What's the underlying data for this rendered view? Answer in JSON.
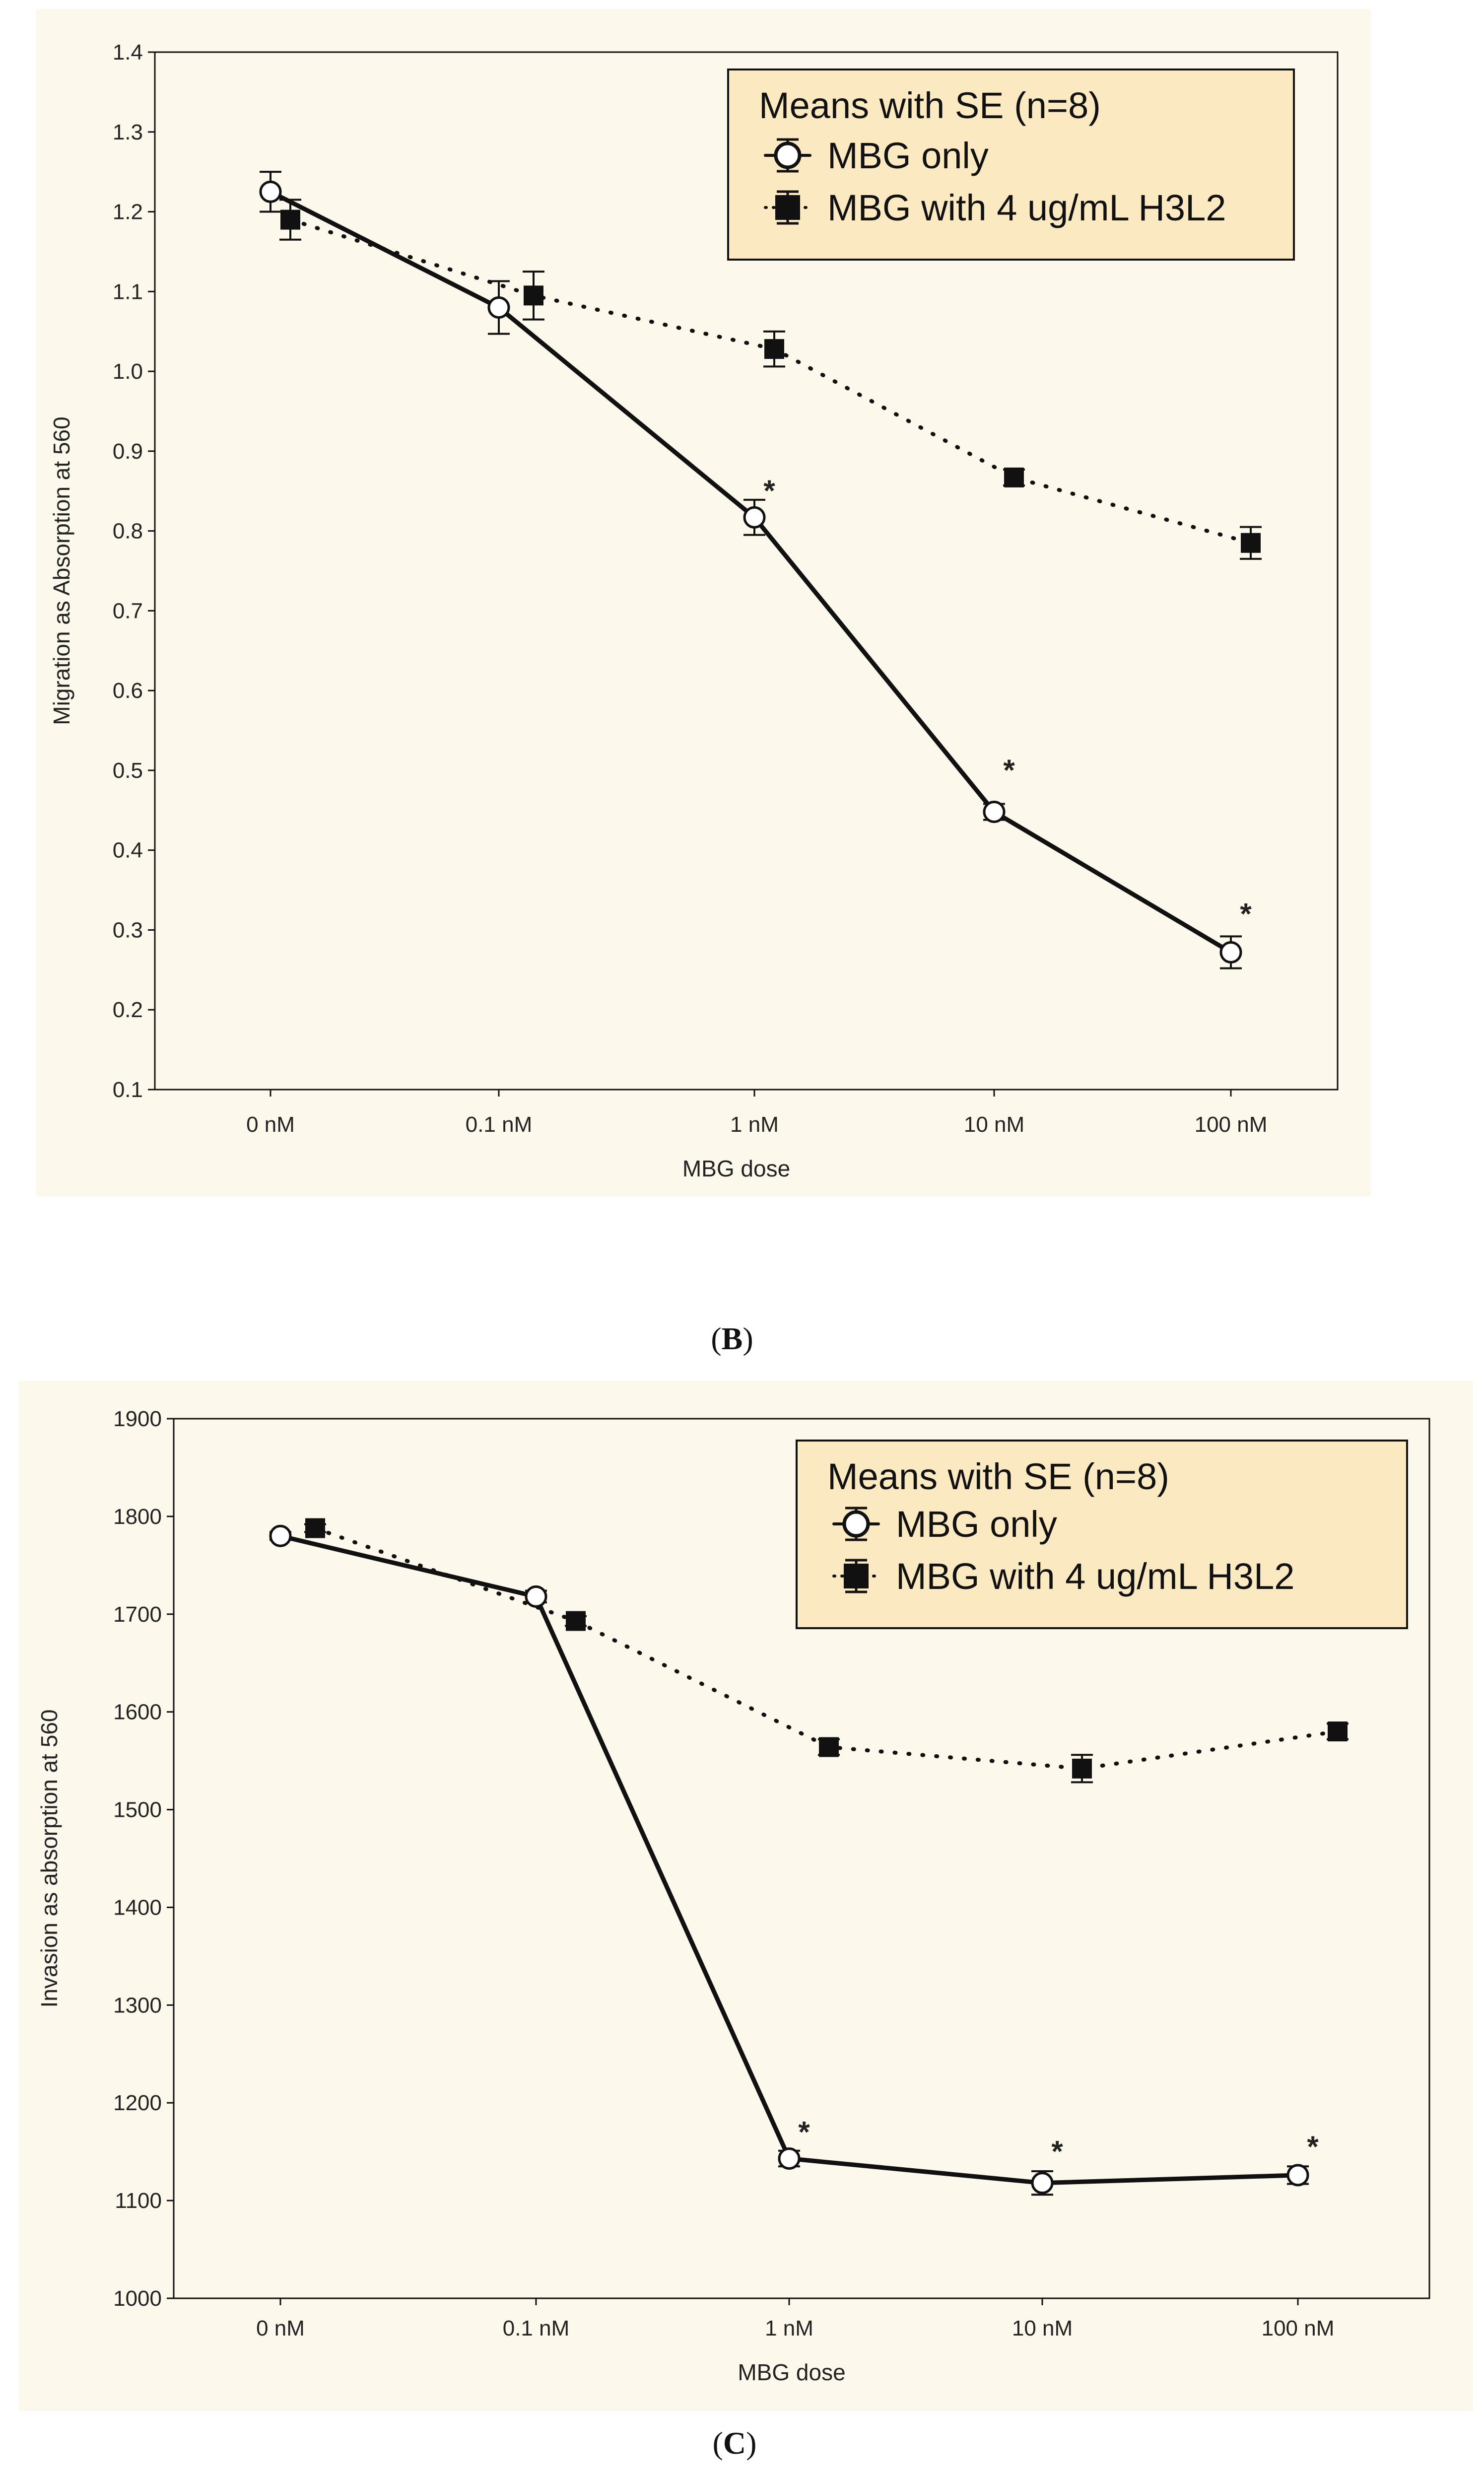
{
  "panels": [
    {
      "id": "B",
      "label": "B",
      "chart_data": {
        "type": "line",
        "title": "",
        "xlabel": "MBG dose",
        "ylabel": "Migration as Absorption at 560",
        "categories": [
          "0 nM",
          "0.1 nM",
          "1 nM",
          "10 nM",
          "100 nM"
        ],
        "ylim": [
          0.1,
          1.4
        ],
        "yticks": [
          0.1,
          0.2,
          0.3,
          0.4,
          0.5,
          0.6,
          0.7,
          0.8,
          0.9,
          1.0,
          1.1,
          1.2,
          1.3,
          1.4
        ],
        "ytick_labels": [
          "0.1",
          "0.2",
          "0.3",
          "0.4",
          "0.5",
          "0.6",
          "0.7",
          "0.8",
          "0.9",
          "1.0",
          "1.1",
          "1.2",
          "1.3",
          "1.4"
        ],
        "legend_title": "Means with SE (n=8)",
        "series": [
          {
            "name": "MBG only",
            "marker": "circle-open",
            "line": "solid",
            "values": [
              1.225,
              1.08,
              0.817,
              0.448,
              0.272
            ],
            "se": [
              0.025,
              0.033,
              0.022,
              0.01,
              0.02
            ]
          },
          {
            "name": "MBG with 4 ug/mL H3L2",
            "marker": "square-filled",
            "line": "dotted",
            "values": [
              1.19,
              1.095,
              1.028,
              0.867,
              0.785
            ],
            "se": [
              0.025,
              0.03,
              0.022,
              0.01,
              0.02
            ]
          }
        ],
        "annotations": [
          {
            "text": "*",
            "category": "1 nM",
            "y": 0.85
          },
          {
            "text": "*",
            "category": "10 nM",
            "y": 0.5
          },
          {
            "text": "*",
            "category": "100 nM",
            "y": 0.32
          }
        ]
      }
    },
    {
      "id": "C",
      "label": "C",
      "chart_data": {
        "type": "line",
        "title": "",
        "xlabel": "MBG dose",
        "ylabel": "Invasion as absorption at 560",
        "categories": [
          "0 nM",
          "0.1 nM",
          "1 nM",
          "10 nM",
          "100 nM"
        ],
        "ylim": [
          1000,
          1900
        ],
        "yticks": [
          1000,
          1100,
          1200,
          1300,
          1400,
          1500,
          1600,
          1700,
          1800,
          1900
        ],
        "ytick_labels": [
          "1000",
          "1100",
          "1200",
          "1300",
          "1400",
          "1500",
          "1600",
          "1700",
          "1800",
          "1900"
        ],
        "legend_title": "Means with SE (n=8)",
        "series": [
          {
            "name": "MBG only",
            "marker": "circle-open",
            "line": "solid",
            "values": [
              1780,
              1718,
              1143,
              1118,
              1126
            ],
            "se": [
              4,
              6,
              8,
              12,
              9
            ]
          },
          {
            "name": "MBG with 4 ug/mL H3L2",
            "marker": "square-filled",
            "line": "dotted",
            "values": [
              1788,
              1693,
              1564,
              1542,
              1580
            ],
            "se": [
              4,
              5,
              8,
              14,
              8
            ]
          }
        ],
        "annotations": [
          {
            "text": "*",
            "category": "1 nM",
            "y": 1170
          },
          {
            "text": "*",
            "category": "10 nM",
            "y": 1150
          },
          {
            "text": "*",
            "category": "100 nM",
            "y": 1155
          }
        ]
      }
    }
  ],
  "colors": {
    "panel_bg": "#fdf8ec",
    "legend_bg": "#fbe9c2",
    "ink": "#111111"
  }
}
